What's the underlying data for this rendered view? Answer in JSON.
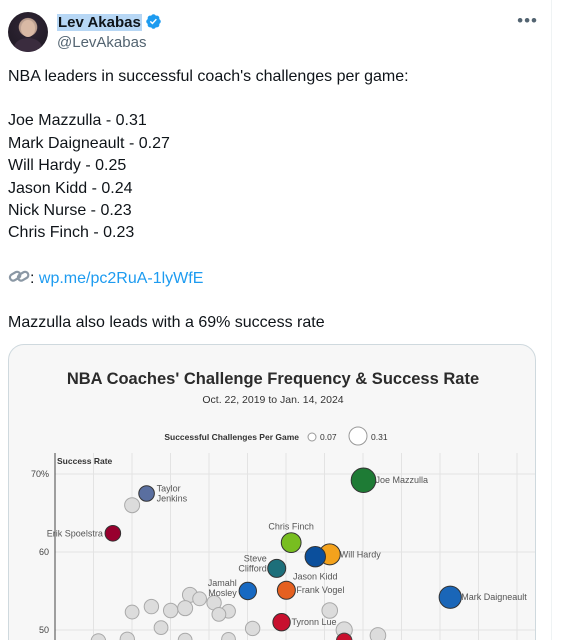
{
  "author": {
    "name": "Lev Akabas",
    "handle": "@LevAkabas",
    "verified": true
  },
  "menu_icon": "more-dots-icon",
  "tweet": {
    "intro": "NBA leaders in successful coach's challenges per game:",
    "leaders": [
      "Joe Mazzulla - 0.31",
      "Mark Daigneault - 0.27",
      "Will Hardy - 0.25",
      "Jason Kidd - 0.24",
      "Nick Nurse - 0.23",
      "Chris Finch - 0.23"
    ],
    "link_prefix": ": ",
    "link_text": "wp.me/pc2RuA-1lyWfE",
    "outro": "Mazzulla also leads with a 69% success rate"
  },
  "chart_data": {
    "type": "scatter",
    "title": "NBA Coaches' Challenge Frequency & Success Rate",
    "subtitle": "Oct. 22, 2019 to Jan. 14, 2024",
    "size_legend": {
      "label": "Successful Challenges Per Game",
      "small": "0.07",
      "large": "0.31"
    },
    "ylabel": "Success Rate",
    "y_ticks": [
      "70%",
      "60",
      "50"
    ],
    "y_tick_values": [
      70,
      60,
      50
    ],
    "ylim": [
      48,
      72
    ],
    "xlim": [
      0,
      1
    ],
    "grid": true,
    "labeled_points": [
      {
        "name": "Joe Mazzulla",
        "x": 0.64,
        "y": 69.2,
        "size": 0.31,
        "color": "#1e7b35"
      },
      {
        "name": "Taylor\nJenkins",
        "x": 0.19,
        "y": 67.5,
        "size": 0.16,
        "color": "#5a6fa0"
      },
      {
        "name": "Erik Spoelstra",
        "x": 0.12,
        "y": 62.4,
        "size": 0.16,
        "color": "#98002e"
      },
      {
        "name": "Chris Finch",
        "x": 0.49,
        "y": 61.2,
        "size": 0.23,
        "color": "#78be20"
      },
      {
        "name": "Will Hardy",
        "x": 0.57,
        "y": 59.7,
        "size": 0.25,
        "color": "#f4a21c"
      },
      {
        "name": "Jason Kidd",
        "x": 0.54,
        "y": 59.4,
        "size": 0.24,
        "color": "#0b4f9c"
      },
      {
        "name": "Steve\nClifford",
        "x": 0.46,
        "y": 57.9,
        "size": 0.2,
        "color": "#1d6f7a"
      },
      {
        "name": "Jamahl\nMosley",
        "x": 0.4,
        "y": 55.0,
        "size": 0.19,
        "color": "#1769c2"
      },
      {
        "name": "Frank Vogel",
        "x": 0.48,
        "y": 55.1,
        "size": 0.2,
        "color": "#e56020"
      },
      {
        "name": "Mark Daigneault",
        "x": 0.82,
        "y": 54.2,
        "size": 0.27,
        "color": "#1a66b8"
      },
      {
        "name": "Tyronn Lue",
        "x": 0.47,
        "y": 51.0,
        "size": 0.19,
        "color": "#c8102e"
      }
    ],
    "unlabeled_points": [
      {
        "x": 0.16,
        "y": 66.0,
        "size": 0.15
      },
      {
        "x": 0.28,
        "y": 54.5,
        "size": 0.15
      },
      {
        "x": 0.3,
        "y": 54.0,
        "size": 0.13
      },
      {
        "x": 0.2,
        "y": 53.0,
        "size": 0.14
      },
      {
        "x": 0.24,
        "y": 52.5,
        "size": 0.14
      },
      {
        "x": 0.27,
        "y": 52.8,
        "size": 0.15
      },
      {
        "x": 0.16,
        "y": 52.3,
        "size": 0.13
      },
      {
        "x": 0.33,
        "y": 53.5,
        "size": 0.14
      },
      {
        "x": 0.36,
        "y": 52.4,
        "size": 0.13
      },
      {
        "x": 0.34,
        "y": 52.0,
        "size": 0.13
      },
      {
        "x": 0.22,
        "y": 50.3,
        "size": 0.13
      },
      {
        "x": 0.41,
        "y": 50.2,
        "size": 0.14
      },
      {
        "x": 0.57,
        "y": 52.5,
        "size": 0.16
      },
      {
        "x": 0.6,
        "y": 50.0,
        "size": 0.17
      },
      {
        "x": 0.67,
        "y": 49.3,
        "size": 0.16
      },
      {
        "x": 0.09,
        "y": 48.6,
        "size": 0.14
      },
      {
        "x": 0.15,
        "y": 48.8,
        "size": 0.14
      },
      {
        "x": 0.27,
        "y": 48.7,
        "size": 0.13
      },
      {
        "x": 0.36,
        "y": 48.8,
        "size": 0.13
      }
    ],
    "partial_points": [
      {
        "x": 0.6,
        "y": 48.6,
        "size": 0.16,
        "color": "#c8102e"
      }
    ]
  }
}
